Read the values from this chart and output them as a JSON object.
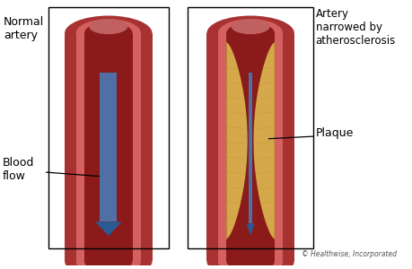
{
  "bg_color": "#ffffff",
  "artery_outer_color": "#a83232",
  "artery_inner_color": "#c04040",
  "artery_lumen_color": "#8b1a1a",
  "artery_highlight": "#d46060",
  "blood_flow_color": "#4a7ab5",
  "blood_flow_dark": "#2a5a95",
  "plaque_color": "#d4a84b",
  "plaque_edge": "#b8902a",
  "plaque_texture": "#c49030",
  "box_color": "#000000",
  "text_color": "#000000",
  "label_line_color": "#000000",
  "copyright_color": "#555555",
  "title_normal": "Normal\nartery",
  "title_narrowed": "Artery\nnarrowed by\natherosclerosis",
  "label_blood": "Blood\nflow",
  "label_plaque": "Plaque",
  "copyright": "© Healthwise, Incorporated"
}
